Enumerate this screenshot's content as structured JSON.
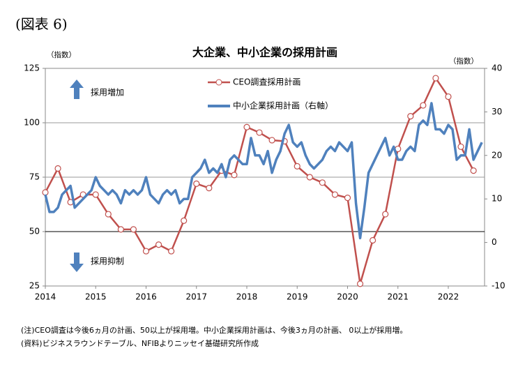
{
  "header": "(図表 6)",
  "chart_data": {
    "type": "line",
    "title": "大企業、中小企業の採用計画",
    "y_label": "（指数）",
    "y2_label": "（指数）",
    "annotations": [
      "採用増加",
      "採用抑制"
    ],
    "xlim": [
      2014,
      2022.72
    ],
    "xticks": [
      2014,
      2015,
      2016,
      2017,
      2018,
      2019,
      2020,
      2021,
      2022
    ],
    "ylim": [
      25,
      125
    ],
    "yticks": [
      25,
      50,
      75,
      100,
      125
    ],
    "y2lim": [
      -10,
      40
    ],
    "y2ticks": [
      -10,
      0,
      10,
      20,
      30,
      40
    ],
    "grid": true,
    "reference_line": 50,
    "series": [
      {
        "name": "CEO調査採用計画",
        "color": "#c0504d",
        "marker": "circle",
        "x": [
          2014,
          2014.25,
          2014.5,
          2014.75,
          2015,
          2015.25,
          2015.5,
          2015.75,
          2016,
          2016.25,
          2016.5,
          2016.75,
          2017,
          2017.25,
          2017.5,
          2017.75,
          2018,
          2018.25,
          2018.5,
          2018.75,
          2019,
          2019.25,
          2019.5,
          2019.75,
          2020,
          2020.25,
          2020.5,
          2020.75,
          2021,
          2021.25,
          2021.5,
          2021.75,
          2022,
          2022.25,
          2022.5
        ],
        "values": [
          68,
          79,
          63.5,
          67,
          67,
          58,
          51,
          51,
          41,
          44,
          41,
          55,
          72,
          70,
          78,
          76,
          98,
          95.5,
          92,
          91.5,
          80,
          75,
          72.5,
          67,
          65.5,
          26,
          46,
          58,
          88,
          103,
          108,
          120.5,
          112,
          89,
          78
        ]
      },
      {
        "name": "中小企業採用計画（右軸）",
        "color": "#4f81bd",
        "axis": "y2",
        "x": [
          2014,
          2014.0833,
          2014.1667,
          2014.25,
          2014.3333,
          2014.4167,
          2014.5,
          2014.5833,
          2014.6667,
          2014.75,
          2014.8333,
          2014.9167,
          2015,
          2015.0833,
          2015.1667,
          2015.25,
          2015.3333,
          2015.4167,
          2015.5,
          2015.5833,
          2015.6667,
          2015.75,
          2015.8333,
          2015.9167,
          2016,
          2016.0833,
          2016.1667,
          2016.25,
          2016.3333,
          2016.4167,
          2016.5,
          2016.5833,
          2016.6667,
          2016.75,
          2016.8333,
          2016.9167,
          2017,
          2017.0833,
          2017.1667,
          2017.25,
          2017.3333,
          2017.4167,
          2017.5,
          2017.5833,
          2017.6667,
          2017.75,
          2017.8333,
          2017.9167,
          2018,
          2018.0833,
          2018.1667,
          2018.25,
          2018.3333,
          2018.4167,
          2018.5,
          2018.5833,
          2018.6667,
          2018.75,
          2018.8333,
          2018.9167,
          2019,
          2019.0833,
          2019.1667,
          2019.25,
          2019.3333,
          2019.4167,
          2019.5,
          2019.5833,
          2019.6667,
          2019.75,
          2019.8333,
          2019.9167,
          2020,
          2020.0833,
          2020.1667,
          2020.25,
          2020.3333,
          2020.4167,
          2020.5,
          2020.5833,
          2020.6667,
          2020.75,
          2020.8333,
          2020.9167,
          2021,
          2021.0833,
          2021.1667,
          2021.25,
          2021.3333,
          2021.4167,
          2021.5,
          2021.5833,
          2021.6667,
          2021.75,
          2021.8333,
          2021.9167,
          2022,
          2022.0833,
          2022.1667,
          2022.25,
          2022.3333,
          2022.4167,
          2022.5,
          2022.5833,
          2022.6667
        ],
        "values": [
          11,
          7,
          7,
          8,
          11,
          12,
          13,
          8,
          9,
          10,
          11,
          12,
          15,
          13,
          12,
          11,
          12,
          11,
          9,
          12,
          11,
          12,
          11,
          12,
          15,
          11,
          10,
          9,
          11,
          12,
          11,
          12,
          9,
          10,
          10,
          15,
          16,
          17,
          19,
          16,
          17,
          16,
          18,
          15,
          19,
          20,
          19,
          18,
          18,
          24,
          20,
          20,
          18,
          21,
          16,
          19,
          21,
          25,
          27,
          23,
          22,
          23,
          20,
          18,
          17,
          18,
          19,
          21,
          22,
          21,
          23,
          22,
          21,
          23,
          9,
          1,
          8,
          16,
          18,
          20,
          22,
          24,
          20,
          22,
          19,
          19,
          21,
          22,
          21,
          27,
          28,
          27,
          32,
          26,
          26,
          25,
          27,
          26,
          19,
          20,
          20,
          26,
          19,
          21,
          23
        ]
      }
    ]
  },
  "notes": [
    "(注)CEO調査は今後6ヵ月の計画、50以上が採用増。中小企業採用計画は、今後3ヵ月の計画、 0以上が採用増。",
    "(資料)ビジネスラウンドテーブル、NFIBよりニッセイ基礎研究所作成"
  ]
}
